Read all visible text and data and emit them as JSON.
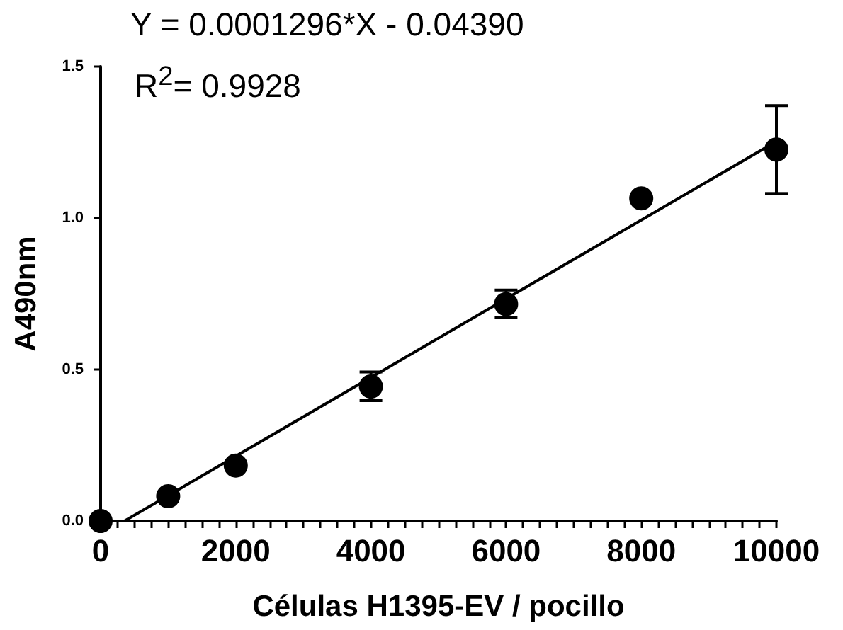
{
  "chart_data": {
    "type": "scatter",
    "xlabel": "Células H1395-EV / pocillo",
    "ylabel": "A490nm",
    "annotations": [
      "Y = 0.0001296*X - 0.04390",
      "R$^{2}$= 0.9928"
    ],
    "series": [
      {
        "color": "#000000",
        "marker": "circle",
        "x": [
          0,
          1000,
          2000,
          4000,
          6000,
          8000,
          10000
        ],
        "values": [
          0.0,
          0.082,
          0.183,
          0.444,
          0.716,
          1.065,
          1.226
        ],
        "errors": [
          null,
          null,
          null,
          [
            0.397,
            0.492
          ],
          [
            0.671,
            0.762
          ],
          null,
          [
            1.081,
            1.371
          ]
        ]
      },
      {
        "type": "line",
        "color": "#000000",
        "marker": "none",
        "line_style": "solid",
        "x": [
          353,
          10000
        ],
        "values": [
          0.0,
          1.253
        ]
      }
    ],
    "xlim": [
      0,
      10000
    ],
    "ylim": [
      0,
      1.5
    ],
    "xticks": [
      0,
      {
        "value": 250,
        "label": null
      },
      {
        "value": 500,
        "label": null
      },
      {
        "value": 750,
        "label": null
      },
      {
        "value": 1000,
        "label": null
      },
      {
        "value": 1250,
        "label": null
      },
      {
        "value": 1500,
        "label": null
      },
      {
        "value": 1750,
        "label": null
      },
      2000,
      {
        "value": 2250,
        "label": null
      },
      {
        "value": 2500,
        "label": null
      },
      {
        "value": 2750,
        "label": null
      },
      {
        "value": 3000,
        "label": null
      },
      {
        "value": 3250,
        "label": null
      },
      {
        "value": 3500,
        "label": null
      },
      {
        "value": 3750,
        "label": null
      },
      4000,
      {
        "value": 4250,
        "label": null
      },
      {
        "value": 4500,
        "label": null
      },
      {
        "value": 4750,
        "label": null
      },
      {
        "value": 5000,
        "label": null
      },
      {
        "value": 5250,
        "label": null
      },
      {
        "value": 5500,
        "label": null
      },
      {
        "value": 5750,
        "label": null
      },
      6000,
      {
        "value": 6250,
        "label": null
      },
      {
        "value": 6500,
        "label": null
      },
      {
        "value": 6750,
        "label": null
      },
      {
        "value": 7000,
        "label": null
      },
      {
        "value": 7250,
        "label": null
      },
      {
        "value": 7500,
        "label": null
      },
      {
        "value": 7750,
        "label": null
      },
      8000,
      {
        "value": 8250,
        "label": null
      },
      {
        "value": 8500,
        "label": null
      },
      {
        "value": 8750,
        "label": null
      },
      {
        "value": 9000,
        "label": null
      },
      {
        "value": 9250,
        "label": null
      },
      {
        "value": 9500,
        "label": null
      },
      {
        "value": 9750,
        "label": null
      },
      10000
    ],
    "yticks": [
      {
        "value": 0,
        "label": "0.0"
      },
      {
        "value": 0.5,
        "label": "0.5"
      },
      {
        "value": 1,
        "label": "1.0"
      },
      {
        "value": 1.5,
        "label": "1.5"
      }
    ],
    "grid": false
  }
}
